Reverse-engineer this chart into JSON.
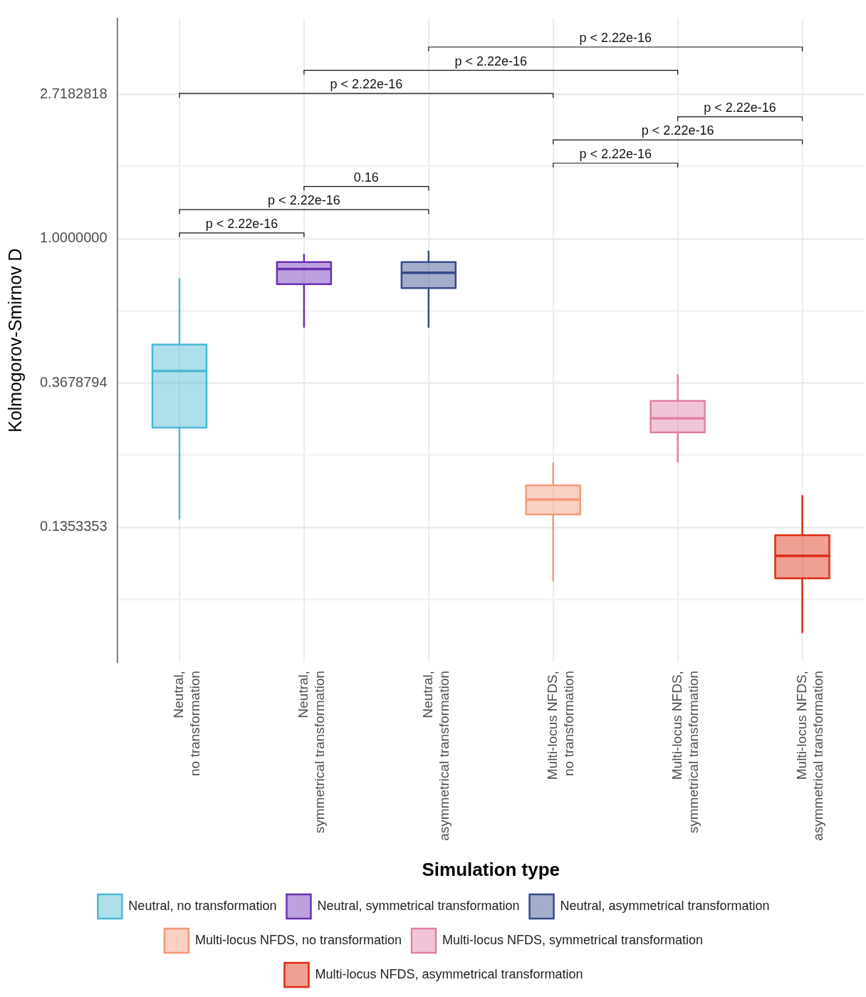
{
  "chart_data": {
    "type": "box",
    "xlabel": "Simulation type",
    "ylabel": "Kolmogorov-Smirnov D",
    "categories": [
      "Neutral,\nno transformation",
      "Neutral,\nsymmetrical transformation",
      "Neutral,\nasymmetrical transformation",
      "Multi-locus NFDS,\nno transformation",
      "Multi-locus NFDS,\nsymmetrical transformation",
      "Multi-locus NFDS,\nasymmetrical transformation"
    ],
    "series": [
      {
        "name": "Neutral,\nno transformation",
        "color": "#4bb8d4",
        "boxes": [
          {
            "low": 0.143,
            "q1": 0.27,
            "median": 0.4,
            "q3": 0.48,
            "high": 0.76
          },
          null,
          null,
          null,
          null,
          null
        ]
      },
      {
        "name": "Neutral,\nsymmetrical transformation",
        "color": "#6a2fb5",
        "boxes": [
          null,
          {
            "low": 0.54,
            "q1": 0.73,
            "median": 0.81,
            "q3": 0.85,
            "high": 0.9
          },
          null,
          null,
          null,
          null
        ]
      },
      {
        "name": "Neutral,\nasymmetrical transformation",
        "color": "#354a8a",
        "boxes": [
          null,
          null,
          {
            "low": 0.54,
            "q1": 0.71,
            "median": 0.79,
            "q3": 0.85,
            "high": 0.92
          },
          null,
          null,
          null
        ]
      },
      {
        "name": "Multi-locus NFDS,\nno transformation",
        "color": "#f4987a",
        "boxes": [
          null,
          null,
          null,
          {
            "low": 0.093,
            "q1": 0.148,
            "median": 0.164,
            "q3": 0.181,
            "high": 0.212
          },
          null,
          null
        ]
      },
      {
        "name": "Multi-locus NFDS,\nsymmetrical transformation",
        "color": "#e07fa6",
        "boxes": [
          null,
          null,
          null,
          null,
          {
            "low": 0.212,
            "q1": 0.261,
            "median": 0.288,
            "q3": 0.325,
            "high": 0.39
          },
          null
        ]
      },
      {
        "name": "Multi-locus NFDS,\nasymmetrical transformation",
        "color": "#dd2a10",
        "boxes": [
          null,
          null,
          null,
          null,
          null,
          {
            "low": 0.065,
            "q1": 0.095,
            "median": 0.111,
            "q3": 0.128,
            "high": 0.169
          }
        ]
      }
    ],
    "log": "y",
    "ylim": [
      0.0531,
      4.6
    ],
    "yticks": [
      0.1353353,
      0.3678794,
      {
        "value": 1,
        "label": "1.0000000"
      },
      2.7182818,
      {
        "value": 0.082085,
        "label": null
      },
      {
        "value": 0.22313,
        "label": null
      },
      {
        "value": 0.60653,
        "label": null
      },
      {
        "value": 1.64872,
        "label": null
      }
    ],
    "grid": true,
    "legend": "bottom",
    "annotations": [
      "p < 2.22e-16",
      "p < 2.22e-16",
      "p < 2.22e-16",
      "p < 2.22e-16",
      "p < 2.22e-16",
      "p < 2.22e-16",
      "0.16",
      "p < 2.22e-16",
      "p < 2.22e-16"
    ]
  }
}
